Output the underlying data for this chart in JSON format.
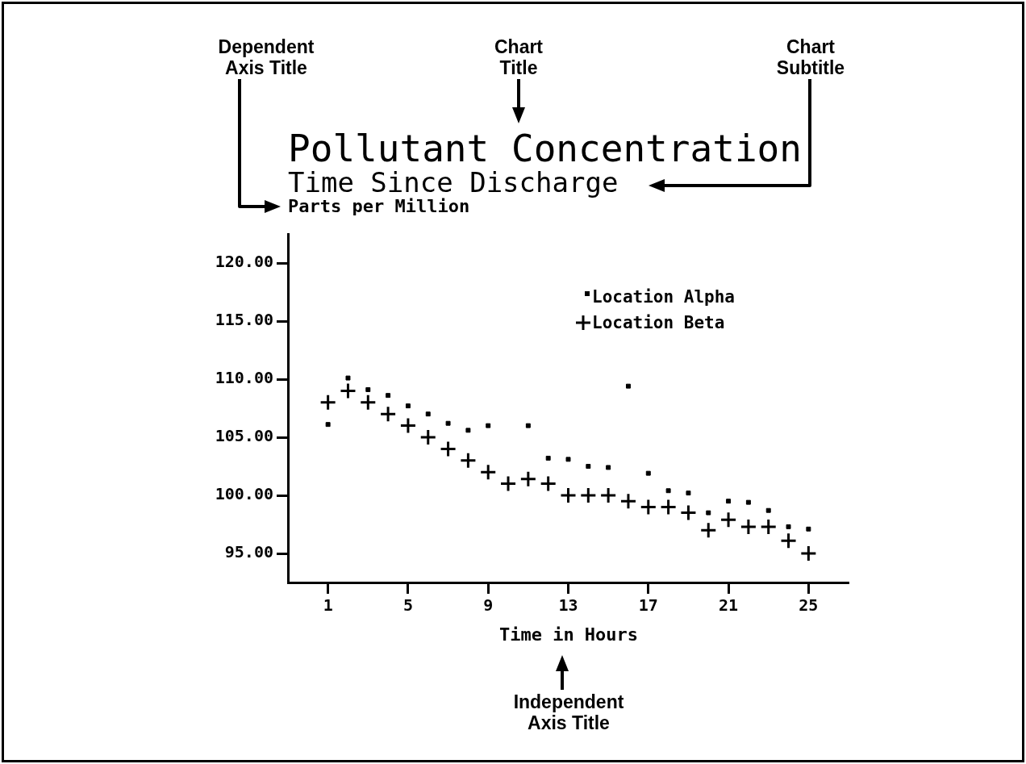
{
  "chart_data": {
    "type": "scatter",
    "title": "Pollutant Concentration",
    "subtitle": "Time Since Discharge",
    "ylabel": "Parts per Million",
    "xlabel": "Time in Hours",
    "annotations": [
      "Dependent Axis Title",
      "Chart Title",
      "Chart Subtitle",
      "Independent Axis Title"
    ],
    "x": [
      1,
      2,
      3,
      4,
      5,
      6,
      7,
      8,
      9,
      10,
      11,
      12,
      13,
      14,
      15,
      16,
      17,
      18,
      19,
      20,
      21,
      22,
      23,
      24,
      25
    ],
    "series": [
      {
        "name": "Location Alpha",
        "color": "#000000",
        "marker": "square",
        "values": [
          106.1,
          110.1,
          109.1,
          108.6,
          107.7,
          107.0,
          106.2,
          105.6,
          106.0,
          null,
          106.0,
          103.2,
          103.1,
          102.5,
          102.4,
          109.4,
          101.9,
          100.4,
          100.2,
          98.5,
          99.5,
          99.4,
          98.7,
          97.3,
          97.1
        ]
      },
      {
        "name": "Location Beta",
        "color": "#000000",
        "marker": "cross",
        "values": [
          108.0,
          109.0,
          108.0,
          107.0,
          106.0,
          105.0,
          104.0,
          103.0,
          102.0,
          101.0,
          101.4,
          101.0,
          100.0,
          100.0,
          100.0,
          99.5,
          99.0,
          99.0,
          98.5,
          97.0,
          97.9,
          97.3,
          97.3,
          96.1,
          95.0
        ]
      }
    ],
    "xlim": [
      -1,
      27
    ],
    "xticks": [
      1,
      5,
      9,
      13,
      17,
      21,
      25
    ],
    "ylim": [
      92.5,
      122.5
    ],
    "yticks": [
      {
        "value": 95,
        "label": "95.00"
      },
      {
        "value": 100,
        "label": "100.00"
      },
      {
        "value": 105,
        "label": "105.00"
      },
      {
        "value": 110,
        "label": "110.00"
      },
      {
        "value": 115,
        "label": "115.00"
      },
      {
        "value": 120,
        "label": "120.00"
      }
    ],
    "grid": false,
    "legend": "top right"
  }
}
